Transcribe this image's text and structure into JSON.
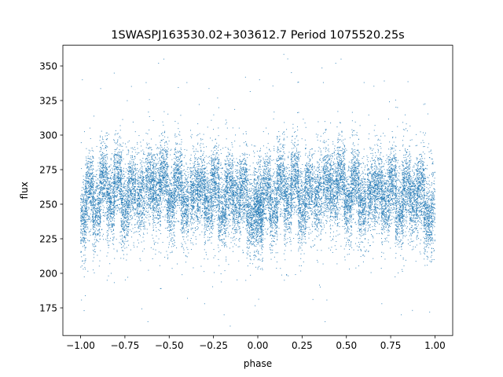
{
  "chart_data": {
    "type": "scatter",
    "title": "1SWASPJ163530.02+303612.7 Period 1075520.25s",
    "xlabel": "phase",
    "ylabel": "flux",
    "xlim": [
      -1.1,
      1.1
    ],
    "ylim": [
      155,
      365
    ],
    "xticks": [
      -1.0,
      -0.75,
      -0.5,
      -0.25,
      0.0,
      0.25,
      0.5,
      0.75,
      1.0
    ],
    "xtick_labels": [
      "−1.00",
      "−0.75",
      "−0.50",
      "−0.25",
      "0.00",
      "0.25",
      "0.50",
      "0.75",
      "1.00"
    ],
    "yticks": [
      175,
      200,
      225,
      250,
      275,
      300,
      325,
      350
    ],
    "ytick_labels": [
      "175",
      "200",
      "225",
      "250",
      "275",
      "300",
      "325",
      "350"
    ],
    "grid": false,
    "marker_color": "#1f77b4",
    "series": [
      {
        "x_range": [
          -1.0,
          1.0
        ],
        "symmetric_about_zero": true,
        "baseline_flux": 258,
        "typical_scatter": 22,
        "clusters": [
          {
            "phase": -0.99,
            "flux": 240
          },
          {
            "phase": -0.95,
            "flux": 262
          },
          {
            "phase": -0.91,
            "flux": 245
          },
          {
            "phase": -0.87,
            "flux": 268
          },
          {
            "phase": -0.83,
            "flux": 252
          },
          {
            "phase": -0.79,
            "flux": 270
          },
          {
            "phase": -0.75,
            "flux": 248
          },
          {
            "phase": -0.71,
            "flux": 262
          },
          {
            "phase": -0.66,
            "flux": 256
          },
          {
            "phase": -0.61,
            "flux": 266
          },
          {
            "phase": -0.57,
            "flux": 258
          },
          {
            "phase": -0.53,
            "flux": 270
          },
          {
            "phase": -0.49,
            "flux": 250
          },
          {
            "phase": -0.45,
            "flux": 268
          },
          {
            "phase": -0.41,
            "flux": 248
          },
          {
            "phase": -0.36,
            "flux": 258
          },
          {
            "phase": -0.32,
            "flux": 262
          },
          {
            "phase": -0.28,
            "flux": 250
          },
          {
            "phase": -0.24,
            "flux": 266
          },
          {
            "phase": -0.2,
            "flux": 245
          },
          {
            "phase": -0.16,
            "flux": 264
          },
          {
            "phase": -0.12,
            "flux": 252
          },
          {
            "phase": -0.08,
            "flux": 262
          },
          {
            "phase": -0.04,
            "flux": 240
          },
          {
            "phase": 0.0,
            "flux": 252
          }
        ],
        "outliers": [
          {
            "x": -0.99,
            "y": 340
          },
          {
            "x": -0.56,
            "y": 352
          },
          {
            "x": -0.53,
            "y": 355
          },
          {
            "x": -0.4,
            "y": 338
          },
          {
            "x": -0.63,
            "y": 338
          },
          {
            "x": -0.19,
            "y": 170
          },
          {
            "x": -0.62,
            "y": 165
          },
          {
            "x": 0.44,
            "y": 352
          },
          {
            "x": 0.47,
            "y": 355
          },
          {
            "x": 0.6,
            "y": 338
          },
          {
            "x": 0.37,
            "y": 338
          },
          {
            "x": 0.81,
            "y": 170
          },
          {
            "x": 0.38,
            "y": 165
          },
          {
            "x": 0.01,
            "y": 340
          },
          {
            "x": -0.85,
            "y": 195
          },
          {
            "x": 0.15,
            "y": 195
          },
          {
            "x": -0.3,
            "y": 178
          },
          {
            "x": 0.7,
            "y": 178
          },
          {
            "x": -0.98,
            "y": 173
          },
          {
            "x": 0.97,
            "y": 172
          }
        ]
      }
    ]
  }
}
